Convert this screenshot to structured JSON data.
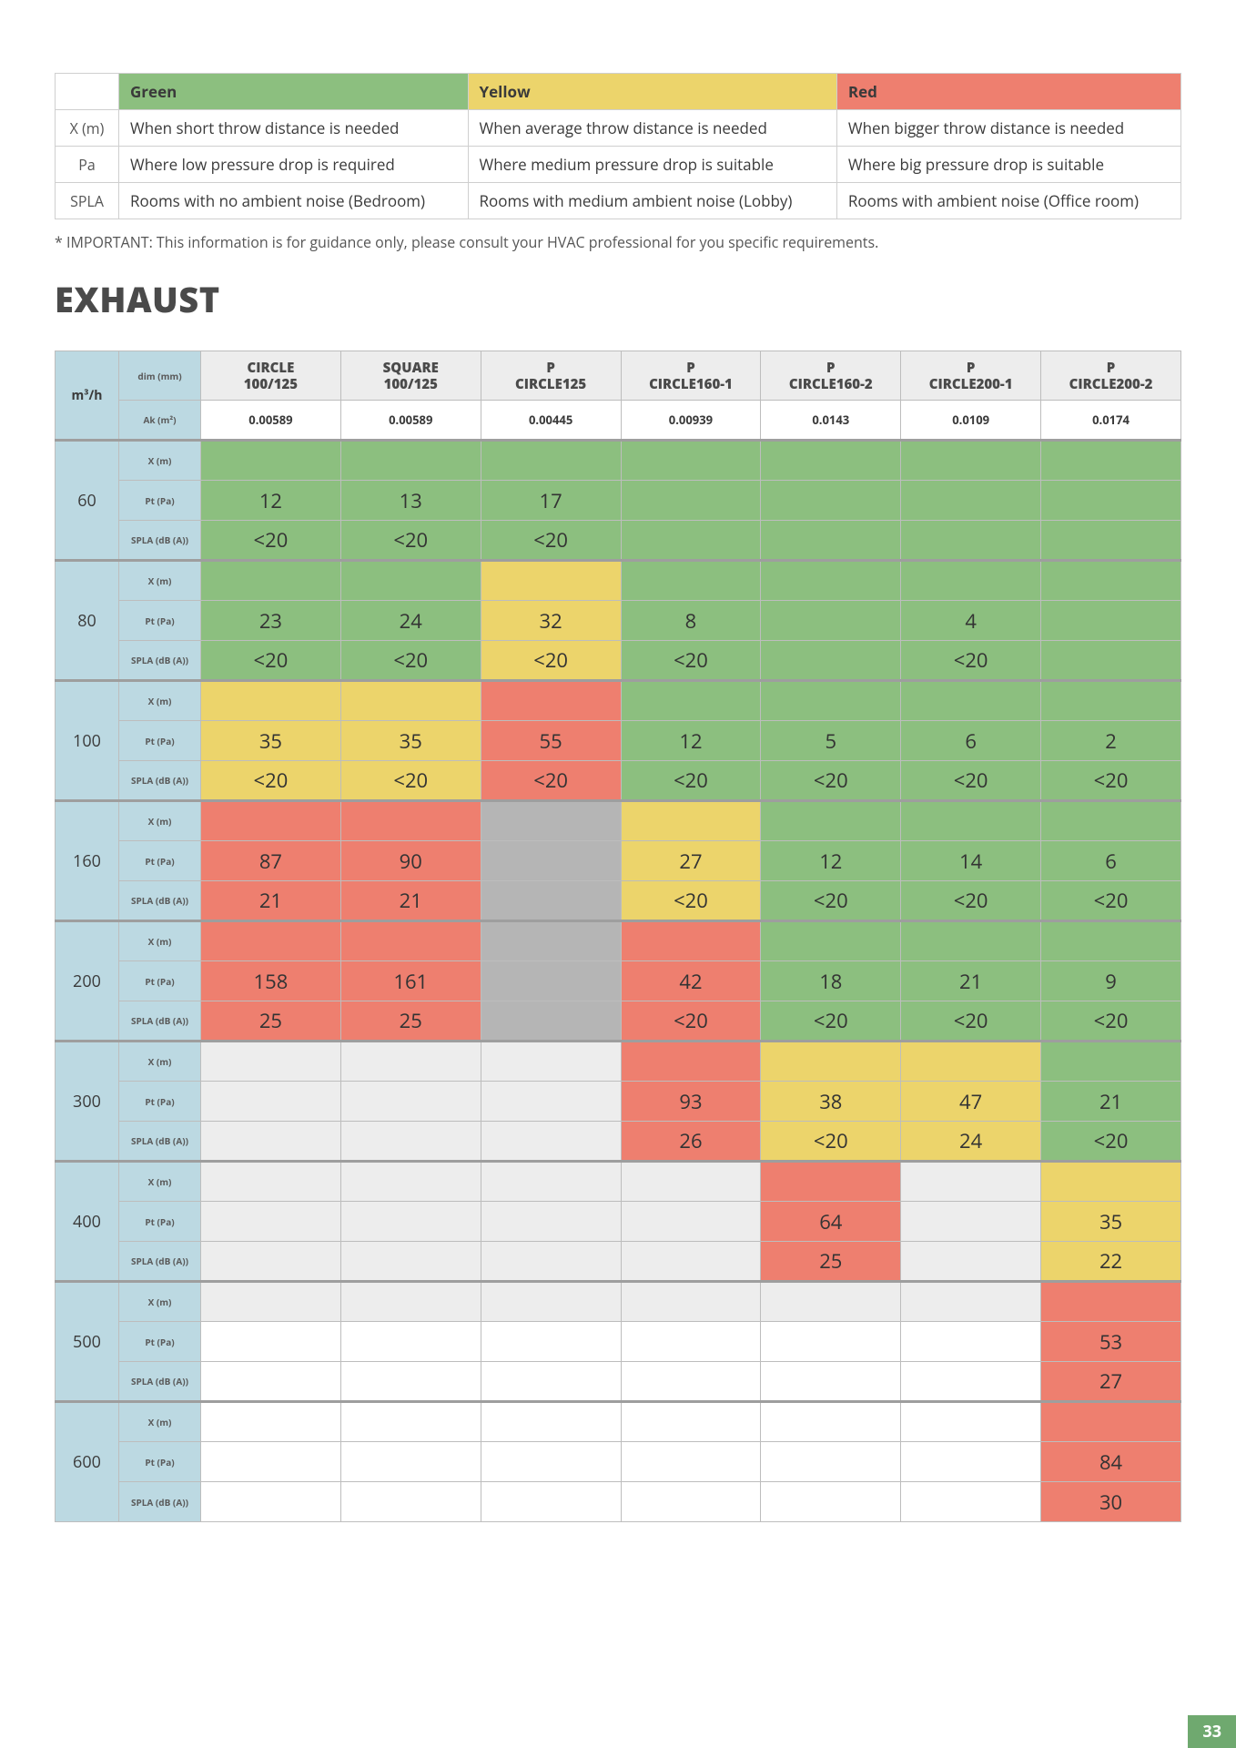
{
  "colors": {
    "green": "#8cbf7f",
    "yellow": "#ecd46b",
    "red": "#ee7f6f",
    "grey": "#ededed",
    "darkgrey": "#b5b5b5",
    "white": "#ffffff",
    "blue": "#bcd9e2"
  },
  "legend": {
    "headers": [
      "Green",
      "Yellow",
      "Red"
    ],
    "header_colors": [
      "green",
      "yellow",
      "red"
    ],
    "rows": [
      {
        "label": "X (m)",
        "cells": [
          "When short throw distance is needed",
          "When average throw distance is needed",
          "When bigger throw distance is needed"
        ]
      },
      {
        "label": "Pa",
        "cells": [
          "Where low pressure drop is required",
          "Where medium pressure drop is suitable",
          "Where big pressure drop is suitable"
        ]
      },
      {
        "label": "SPLA",
        "cells": [
          "Rooms with no ambient noise (Bedroom)",
          "Rooms with medium ambient noise (Lobby)",
          "Rooms with ambient noise (Office room)"
        ]
      }
    ]
  },
  "note": "* IMPORTANT: This information is for guidance only, please consult your HVAC professional for you specific requirements.",
  "section_title": "EXHAUST",
  "unit_label": "m³/h",
  "dim_label": "dim (mm)",
  "ak_label": "Ak (m²)",
  "param_labels": [
    "X (m)",
    "Pt (Pa)",
    "SPLA (dB (A))"
  ],
  "products": [
    {
      "name": "CIRCLE 100/125",
      "ak": "0.00589"
    },
    {
      "name": "SQUARE 100/125",
      "ak": "0.00589"
    },
    {
      "name": "P CIRCLE 125",
      "ak": "0.00445"
    },
    {
      "name": "P CIRCLE 160-1",
      "ak": "0.00939"
    },
    {
      "name": "P CIRCLE 160-2",
      "ak": "0.0143"
    },
    {
      "name": "P CIRCLE 200-1",
      "ak": "0.0109"
    },
    {
      "name": "P CIRCLE 200-2",
      "ak": "0.0174"
    }
  ],
  "flows": [
    "60",
    "80",
    "100",
    "160",
    "200",
    "300",
    "400",
    "500",
    "600"
  ],
  "data": {
    "60": {
      "x": [
        {
          "c": "green"
        },
        {
          "c": "green"
        },
        {
          "c": "green"
        },
        {
          "c": "green"
        },
        {
          "c": "green"
        },
        {
          "c": "green"
        },
        {
          "c": "green"
        }
      ],
      "pt": [
        {
          "v": "12",
          "c": "green"
        },
        {
          "v": "13",
          "c": "green"
        },
        {
          "v": "17",
          "c": "green"
        },
        {
          "c": "green"
        },
        {
          "c": "green"
        },
        {
          "c": "green"
        },
        {
          "c": "green"
        }
      ],
      "spl": [
        {
          "v": "<20",
          "c": "green"
        },
        {
          "v": "<20",
          "c": "green"
        },
        {
          "v": "<20",
          "c": "green"
        },
        {
          "c": "green"
        },
        {
          "c": "green"
        },
        {
          "c": "green"
        },
        {
          "c": "green"
        }
      ]
    },
    "80": {
      "x": [
        {
          "c": "green"
        },
        {
          "c": "green"
        },
        {
          "c": "yellow"
        },
        {
          "c": "green"
        },
        {
          "c": "green"
        },
        {
          "c": "green"
        },
        {
          "c": "green"
        }
      ],
      "pt": [
        {
          "v": "23",
          "c": "green"
        },
        {
          "v": "24",
          "c": "green"
        },
        {
          "v": "32",
          "c": "yellow"
        },
        {
          "v": "8",
          "c": "green"
        },
        {
          "c": "green"
        },
        {
          "v": "4",
          "c": "green"
        },
        {
          "c": "green"
        }
      ],
      "spl": [
        {
          "v": "<20",
          "c": "green"
        },
        {
          "v": "<20",
          "c": "green"
        },
        {
          "v": "<20",
          "c": "yellow"
        },
        {
          "v": "<20",
          "c": "green"
        },
        {
          "c": "green"
        },
        {
          "v": "<20",
          "c": "green"
        },
        {
          "c": "green"
        }
      ]
    },
    "100": {
      "x": [
        {
          "c": "yellow"
        },
        {
          "c": "yellow"
        },
        {
          "c": "red"
        },
        {
          "c": "green"
        },
        {
          "c": "green"
        },
        {
          "c": "green"
        },
        {
          "c": "green"
        }
      ],
      "pt": [
        {
          "v": "35",
          "c": "yellow"
        },
        {
          "v": "35",
          "c": "yellow"
        },
        {
          "v": "55",
          "c": "red"
        },
        {
          "v": "12",
          "c": "green"
        },
        {
          "v": "5",
          "c": "green"
        },
        {
          "v": "6",
          "c": "green"
        },
        {
          "v": "2",
          "c": "green"
        }
      ],
      "spl": [
        {
          "v": "<20",
          "c": "yellow"
        },
        {
          "v": "<20",
          "c": "yellow"
        },
        {
          "v": "<20",
          "c": "red"
        },
        {
          "v": "<20",
          "c": "green"
        },
        {
          "v": "<20",
          "c": "green"
        },
        {
          "v": "<20",
          "c": "green"
        },
        {
          "v": "<20",
          "c": "green"
        }
      ]
    },
    "160": {
      "x": [
        {
          "c": "red"
        },
        {
          "c": "red"
        },
        {
          "c": "darkgrey"
        },
        {
          "c": "yellow"
        },
        {
          "c": "green"
        },
        {
          "c": "green"
        },
        {
          "c": "green"
        }
      ],
      "pt": [
        {
          "v": "87",
          "c": "red"
        },
        {
          "v": "90",
          "c": "red"
        },
        {
          "c": "darkgrey"
        },
        {
          "v": "27",
          "c": "yellow"
        },
        {
          "v": "12",
          "c": "green"
        },
        {
          "v": "14",
          "c": "green"
        },
        {
          "v": "6",
          "c": "green"
        }
      ],
      "spl": [
        {
          "v": "21",
          "c": "red"
        },
        {
          "v": "21",
          "c": "red"
        },
        {
          "c": "darkgrey"
        },
        {
          "v": "<20",
          "c": "yellow"
        },
        {
          "v": "<20",
          "c": "green"
        },
        {
          "v": "<20",
          "c": "green"
        },
        {
          "v": "<20",
          "c": "green"
        }
      ]
    },
    "200": {
      "x": [
        {
          "c": "red"
        },
        {
          "c": "red"
        },
        {
          "c": "darkgrey"
        },
        {
          "c": "red"
        },
        {
          "c": "green"
        },
        {
          "c": "green"
        },
        {
          "c": "green"
        }
      ],
      "pt": [
        {
          "v": "158",
          "c": "red"
        },
        {
          "v": "161",
          "c": "red"
        },
        {
          "c": "darkgrey"
        },
        {
          "v": "42",
          "c": "red"
        },
        {
          "v": "18",
          "c": "green"
        },
        {
          "v": "21",
          "c": "green"
        },
        {
          "v": "9",
          "c": "green"
        }
      ],
      "spl": [
        {
          "v": "25",
          "c": "red"
        },
        {
          "v": "25",
          "c": "red"
        },
        {
          "c": "darkgrey"
        },
        {
          "v": "<20",
          "c": "red"
        },
        {
          "v": "<20",
          "c": "green"
        },
        {
          "v": "<20",
          "c": "green"
        },
        {
          "v": "<20",
          "c": "green"
        }
      ]
    },
    "300": {
      "x": [
        {
          "c": "grey"
        },
        {
          "c": "grey"
        },
        {
          "c": "grey"
        },
        {
          "c": "red"
        },
        {
          "c": "yellow"
        },
        {
          "c": "yellow"
        },
        {
          "c": "green"
        }
      ],
      "pt": [
        {
          "c": "grey"
        },
        {
          "c": "grey"
        },
        {
          "c": "grey"
        },
        {
          "v": "93",
          "c": "red"
        },
        {
          "v": "38",
          "c": "yellow"
        },
        {
          "v": "47",
          "c": "yellow"
        },
        {
          "v": "21",
          "c": "green"
        }
      ],
      "spl": [
        {
          "c": "grey"
        },
        {
          "c": "grey"
        },
        {
          "c": "grey"
        },
        {
          "v": "26",
          "c": "red"
        },
        {
          "v": "<20",
          "c": "yellow"
        },
        {
          "v": "24",
          "c": "yellow"
        },
        {
          "v": "<20",
          "c": "green"
        }
      ]
    },
    "400": {
      "x": [
        {
          "c": "grey"
        },
        {
          "c": "grey"
        },
        {
          "c": "grey"
        },
        {
          "c": "grey"
        },
        {
          "c": "red"
        },
        {
          "c": "grey"
        },
        {
          "c": "yellow"
        }
      ],
      "pt": [
        {
          "c": "grey"
        },
        {
          "c": "grey"
        },
        {
          "c": "grey"
        },
        {
          "c": "grey"
        },
        {
          "v": "64",
          "c": "red"
        },
        {
          "c": "grey"
        },
        {
          "v": "35",
          "c": "yellow"
        }
      ],
      "spl": [
        {
          "c": "grey"
        },
        {
          "c": "grey"
        },
        {
          "c": "grey"
        },
        {
          "c": "grey"
        },
        {
          "v": "25",
          "c": "red"
        },
        {
          "c": "grey"
        },
        {
          "v": "22",
          "c": "yellow"
        }
      ]
    },
    "500": {
      "x": [
        {
          "c": "grey"
        },
        {
          "c": "grey"
        },
        {
          "c": "grey"
        },
        {
          "c": "grey"
        },
        {
          "c": "grey"
        },
        {
          "c": "grey"
        },
        {
          "c": "red"
        }
      ],
      "pt": [
        {
          "c": "white"
        },
        {
          "c": "white"
        },
        {
          "c": "white"
        },
        {
          "c": "white"
        },
        {
          "c": "white"
        },
        {
          "c": "white"
        },
        {
          "v": "53",
          "c": "red"
        }
      ],
      "spl": [
        {
          "c": "white"
        },
        {
          "c": "white"
        },
        {
          "c": "white"
        },
        {
          "c": "white"
        },
        {
          "c": "white"
        },
        {
          "c": "white"
        },
        {
          "v": "27",
          "c": "red"
        }
      ]
    },
    "600": {
      "x": [
        {
          "c": "white"
        },
        {
          "c": "white"
        },
        {
          "c": "white"
        },
        {
          "c": "white"
        },
        {
          "c": "white"
        },
        {
          "c": "white"
        },
        {
          "c": "red"
        }
      ],
      "pt": [
        {
          "c": "white"
        },
        {
          "c": "white"
        },
        {
          "c": "white"
        },
        {
          "c": "white"
        },
        {
          "c": "white"
        },
        {
          "c": "white"
        },
        {
          "v": "84",
          "c": "red"
        }
      ],
      "spl": [
        {
          "c": "white"
        },
        {
          "c": "white"
        },
        {
          "c": "white"
        },
        {
          "c": "white"
        },
        {
          "c": "white"
        },
        {
          "c": "white"
        },
        {
          "v": "30",
          "c": "red"
        }
      ]
    }
  },
  "page_number": "33"
}
